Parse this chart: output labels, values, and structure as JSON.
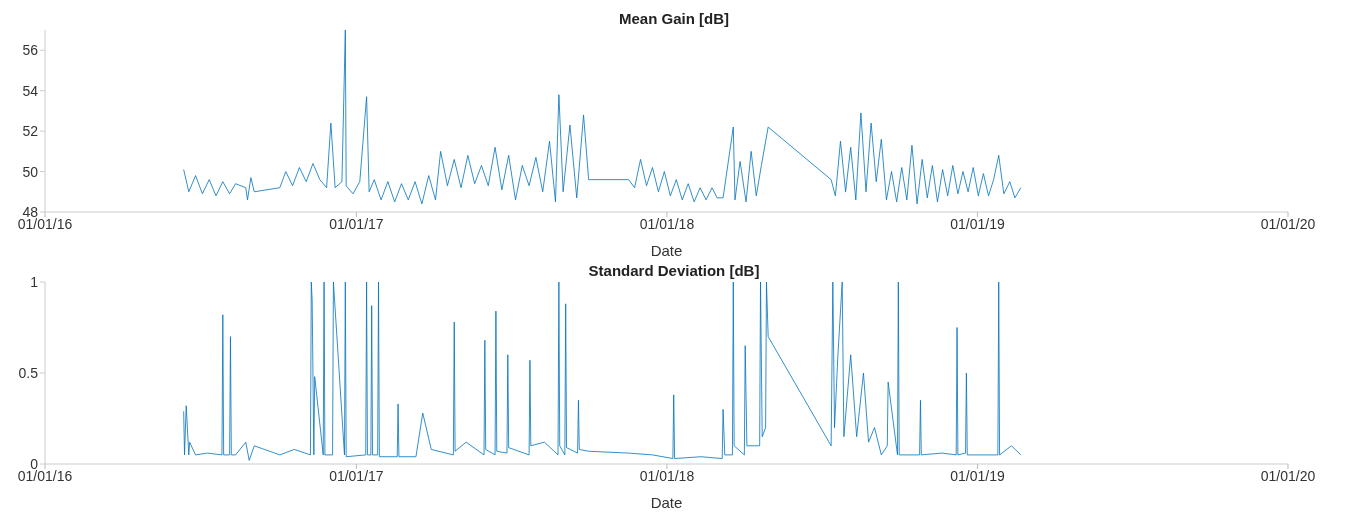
{
  "chart_data": [
    {
      "type": "line",
      "title": "Mean Gain [dB]",
      "xlabel": "Date",
      "xlim": [
        "2016-01-01",
        "2020-01-01"
      ],
      "xticks": [
        {
          "value": "2016-01-01",
          "label": "01/01/16"
        },
        {
          "value": "2017-01-01",
          "label": "01/01/17"
        },
        {
          "value": "2018-01-01",
          "label": "01/01/18"
        },
        {
          "value": "2019-01-01",
          "label": "01/01/19"
        },
        {
          "value": "2020-01-01",
          "label": "01/01/20"
        }
      ],
      "ylim": [
        48,
        57
      ],
      "yticks": [
        48,
        50,
        52,
        54,
        56
      ],
      "marker": "none",
      "line_style": "solid",
      "series": [
        {
          "color": "#0072bd",
          "x": [
            "2016-06-12",
            "2016-06-18",
            "2016-06-26",
            "2016-07-04",
            "2016-07-12",
            "2016-07-20",
            "2016-07-28",
            "2016-08-05",
            "2016-08-12",
            "2016-08-24",
            "2016-08-26",
            "2016-08-30",
            "2016-09-03",
            "2016-10-03",
            "2016-10-10",
            "2016-10-18",
            "2016-10-26",
            "2016-11-03",
            "2016-11-11",
            "2016-11-19",
            "2016-11-27",
            "2016-12-02",
            "2016-12-07",
            "2016-12-15",
            "2016-12-19",
            "2016-12-20",
            "2016-12-28",
            "2017-01-05",
            "2017-01-13",
            "2017-01-16",
            "2017-01-22",
            "2017-01-30",
            "2017-02-07",
            "2017-02-15",
            "2017-02-23",
            "2017-03-03",
            "2017-03-11",
            "2017-03-19",
            "2017-03-27",
            "2017-04-04",
            "2017-04-10",
            "2017-04-18",
            "2017-04-26",
            "2017-05-04",
            "2017-05-12",
            "2017-05-20",
            "2017-05-28",
            "2017-06-05",
            "2017-06-13",
            "2017-06-21",
            "2017-06-29",
            "2017-07-07",
            "2017-07-15",
            "2017-07-23",
            "2017-07-31",
            "2017-08-08",
            "2017-08-16",
            "2017-08-23",
            "2017-08-27",
            "2017-09-01",
            "2017-09-09",
            "2017-09-17",
            "2017-09-25",
            "2017-10-01",
            "2017-11-17",
            "2017-11-24",
            "2017-12-01",
            "2017-12-08",
            "2017-12-15",
            "2017-12-22",
            "2017-12-29",
            "2018-01-05",
            "2018-01-12",
            "2018-01-19",
            "2018-01-26",
            "2018-02-02",
            "2018-02-09",
            "2018-02-16",
            "2018-02-23",
            "2018-03-01",
            "2018-03-08",
            "2018-03-20",
            "2018-03-22",
            "2018-03-28",
            "2018-04-04",
            "2018-04-10",
            "2018-04-16",
            "2018-04-22",
            "2018-04-30",
            "2018-07-13",
            "2018-07-18",
            "2018-07-24",
            "2018-07-30",
            "2018-08-05",
            "2018-08-11",
            "2018-08-17",
            "2018-08-23",
            "2018-08-29",
            "2018-09-04",
            "2018-09-10",
            "2018-09-16",
            "2018-09-22",
            "2018-09-28",
            "2018-10-04",
            "2018-10-10",
            "2018-10-16",
            "2018-10-22",
            "2018-10-28",
            "2018-11-03",
            "2018-11-09",
            "2018-11-15",
            "2018-11-21",
            "2018-11-27",
            "2018-12-03",
            "2018-12-09",
            "2018-12-15",
            "2018-12-21",
            "2018-12-27",
            "2019-01-02",
            "2019-01-08",
            "2019-01-14",
            "2019-01-20",
            "2019-01-26",
            "2019-02-01",
            "2019-02-08",
            "2019-02-14",
            "2019-02-21"
          ],
          "values": [
            50.1,
            49.0,
            49.8,
            48.9,
            49.6,
            48.8,
            49.5,
            48.9,
            49.4,
            49.2,
            48.6,
            49.7,
            49.0,
            49.2,
            50.0,
            49.3,
            50.2,
            49.5,
            50.4,
            49.6,
            49.2,
            52.4,
            49.2,
            49.5,
            57,
            49.3,
            48.9,
            49.5,
            53.7,
            49.0,
            49.6,
            48.6,
            49.5,
            48.5,
            49.4,
            48.6,
            49.5,
            48.4,
            49.8,
            48.6,
            51.0,
            49.3,
            50.6,
            49.2,
            50.8,
            49.4,
            50.3,
            49.3,
            51.2,
            49.1,
            50.8,
            48.6,
            50.3,
            49.3,
            50.7,
            49.0,
            51.5,
            48.5,
            53.8,
            49.0,
            52.3,
            48.7,
            52.8,
            49.6,
            49.6,
            49.2,
            50.6,
            49.3,
            50.2,
            49.0,
            50.0,
            48.8,
            49.6,
            48.6,
            49.4,
            48.5,
            49.2,
            48.6,
            49.2,
            48.7,
            48.7,
            52.2,
            48.6,
            50.5,
            48.5,
            51.0,
            48.8,
            50.3,
            52.2,
            49.6,
            48.8,
            51.5,
            49.0,
            51.2,
            48.6,
            52.9,
            49.0,
            52.4,
            49.5,
            51.6,
            48.6,
            50.0,
            48.5,
            50.2,
            48.6,
            51.3,
            48.4,
            50.6,
            48.7,
            50.3,
            48.5,
            50.1,
            48.8,
            50.3,
            48.9,
            50.0,
            49.0,
            50.2,
            48.8,
            49.9,
            48.8,
            49.6,
            50.8,
            48.9,
            49.5,
            48.7,
            49.2
          ]
        }
      ]
    },
    {
      "type": "line",
      "title": "Standard Deviation [dB]",
      "xlabel": "Date",
      "xlim": [
        "2016-01-01",
        "2020-01-01"
      ],
      "xticks": [
        {
          "value": "2016-01-01",
          "label": "01/01/16"
        },
        {
          "value": "2017-01-01",
          "label": "01/01/17"
        },
        {
          "value": "2018-01-01",
          "label": "01/01/18"
        },
        {
          "value": "2019-01-01",
          "label": "01/01/19"
        },
        {
          "value": "2020-01-01",
          "label": "01/01/20"
        }
      ],
      "ylim": [
        0,
        1
      ],
      "yticks": [
        0,
        0.5,
        1
      ],
      "marker": "none",
      "line_style": "solid",
      "series": [
        {
          "color": "#0072bd",
          "x": [
            "2016-06-12",
            "2016-06-13",
            "2016-06-15",
            "2016-06-18",
            "2016-06-19",
            "2016-06-26",
            "2016-07-10",
            "2016-07-27",
            "2016-07-28",
            "2016-07-29",
            "2016-08-05",
            "2016-08-06",
            "2016-08-07",
            "2016-08-12",
            "2016-08-24",
            "2016-08-28",
            "2016-09-03",
            "2016-10-03",
            "2016-10-20",
            "2016-11-08",
            "2016-11-09",
            "2016-11-10",
            "2016-11-12",
            "2016-11-13",
            "2016-11-23",
            "2016-11-24",
            "2016-11-25",
            "2016-12-04",
            "2016-12-05",
            "2016-12-18",
            "2016-12-19",
            "2016-12-20",
            "2017-01-12",
            "2017-01-13",
            "2017-01-14",
            "2017-01-18",
            "2017-01-19",
            "2017-01-20",
            "2017-01-26",
            "2017-01-27",
            "2017-01-28",
            "2017-02-18",
            "2017-02-19",
            "2017-02-20",
            "2017-03-12",
            "2017-03-20",
            "2017-03-30",
            "2017-04-25",
            "2017-04-26",
            "2017-04-27",
            "2017-05-10",
            "2017-05-31",
            "2017-06-01",
            "2017-06-02",
            "2017-06-13",
            "2017-06-14",
            "2017-06-15",
            "2017-06-27",
            "2017-06-28",
            "2017-06-29",
            "2017-07-23",
            "2017-07-24",
            "2017-07-25",
            "2017-08-10",
            "2017-08-26",
            "2017-08-27",
            "2017-08-28",
            "2017-09-03",
            "2017-09-04",
            "2017-09-05",
            "2017-09-18",
            "2017-09-19",
            "2017-09-20",
            "2017-10-01",
            "2017-11-17",
            "2017-12-15",
            "2018-01-08",
            "2018-01-09",
            "2018-01-10",
            "2018-02-10",
            "2018-03-07",
            "2018-03-08",
            "2018-03-10",
            "2018-03-19",
            "2018-03-20",
            "2018-03-21",
            "2018-04-02",
            "2018-04-03",
            "2018-04-05",
            "2018-04-20",
            "2018-04-21",
            "2018-04-23",
            "2018-04-27",
            "2018-04-28",
            "2018-04-30",
            "2018-07-13",
            "2018-07-15",
            "2018-07-17",
            "2018-07-21",
            "2018-07-26",
            "2018-07-28",
            "2018-08-05",
            "2018-08-12",
            "2018-08-20",
            "2018-08-26",
            "2018-09-02",
            "2018-09-10",
            "2018-09-17",
            "2018-09-18",
            "2018-09-29",
            "2018-09-30",
            "2018-10-01",
            "2018-10-25",
            "2018-10-26",
            "2018-10-27",
            "2018-11-20",
            "2018-12-07",
            "2018-12-08",
            "2018-12-09",
            "2018-12-18",
            "2018-12-19",
            "2018-12-20",
            "2019-01-25",
            "2019-01-26",
            "2019-01-27",
            "2019-02-10",
            "2019-02-21"
          ],
          "values": [
            0.29,
            0.05,
            0.32,
            0.05,
            0.12,
            0.05,
            0.06,
            0.05,
            0.82,
            0.05,
            0.05,
            0.7,
            0.05,
            0.05,
            0.12,
            0.02,
            0.1,
            0.05,
            0.08,
            0.05,
            1,
            0.9,
            0.05,
            0.48,
            0.05,
            1,
            0.05,
            0.05,
            1,
            0.05,
            1,
            0.04,
            0.05,
            1,
            0.05,
            0.05,
            0.87,
            0.05,
            0.05,
            1,
            0.04,
            0.04,
            0.33,
            0.04,
            0.04,
            0.28,
            0.08,
            0.05,
            0.78,
            0.07,
            0.12,
            0.05,
            0.68,
            0.08,
            0.05,
            0.84,
            0.07,
            0.06,
            0.6,
            0.09,
            0.05,
            0.57,
            0.1,
            0.12,
            0.05,
            1,
            0.1,
            0.05,
            0.88,
            0.09,
            0.06,
            0.35,
            0.08,
            0.07,
            0.06,
            0.05,
            0.03,
            0.38,
            0.03,
            0.04,
            0.03,
            0.3,
            0.05,
            0.05,
            1,
            0.1,
            0.05,
            0.65,
            0.1,
            0.1,
            1,
            0.15,
            0.2,
            1,
            0.7,
            0.1,
            1,
            0.2,
            0.6,
            1,
            0.15,
            0.6,
            0.15,
            0.5,
            0.12,
            0.2,
            0.05,
            0.1,
            0.45,
            0.05,
            1,
            0.05,
            0.05,
            0.35,
            0.05,
            0.06,
            0.05,
            0.75,
            0.05,
            0.06,
            0.5,
            0.05,
            0.05,
            1,
            0.05,
            0.1,
            0.05
          ]
        }
      ]
    }
  ]
}
